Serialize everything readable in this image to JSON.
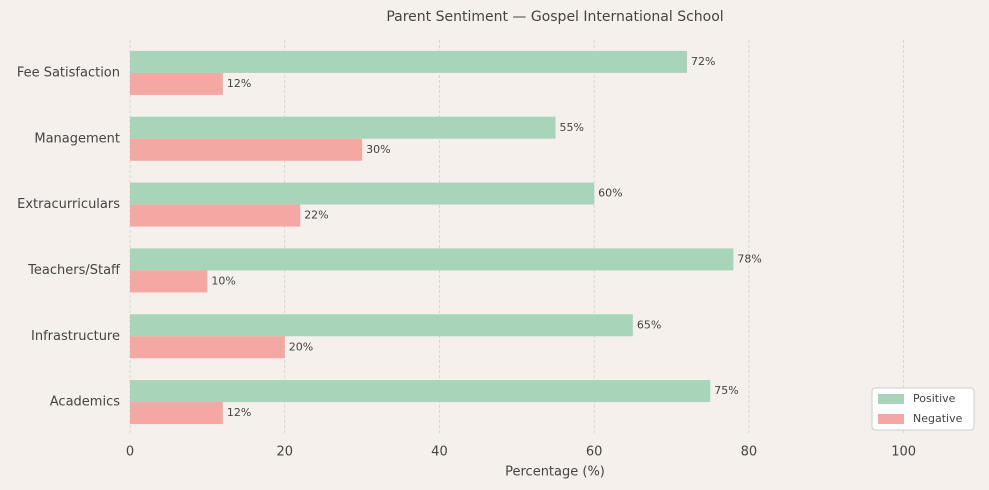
{
  "chart_data": {
    "type": "barh",
    "title": "Parent Sentiment — Gospel International School",
    "xlabel": "Percentage (%)",
    "categories": [
      "Fee Satisfaction",
      "Management",
      "Extracurriculars",
      "Teachers/Staff",
      "Infrastructure",
      "Academics"
    ],
    "series": [
      {
        "name": "Positive",
        "color": "#a8d5ba",
        "values": [
          72,
          55,
          60,
          78,
          65,
          75
        ],
        "value_labels": [
          "72%",
          "55%",
          "60%",
          "78%",
          "65%",
          "75%"
        ]
      },
      {
        "name": "Negative",
        "color": "#f4a7a3",
        "values": [
          12,
          30,
          22,
          10,
          20,
          12
        ],
        "value_labels": [
          "12%",
          "30%",
          "22%",
          "10%",
          "20%",
          "12%"
        ]
      }
    ],
    "xlim": [
      0,
      110
    ],
    "xticks": [
      0,
      20,
      40,
      60,
      80,
      100
    ],
    "grid": true,
    "legend": "lower right"
  }
}
